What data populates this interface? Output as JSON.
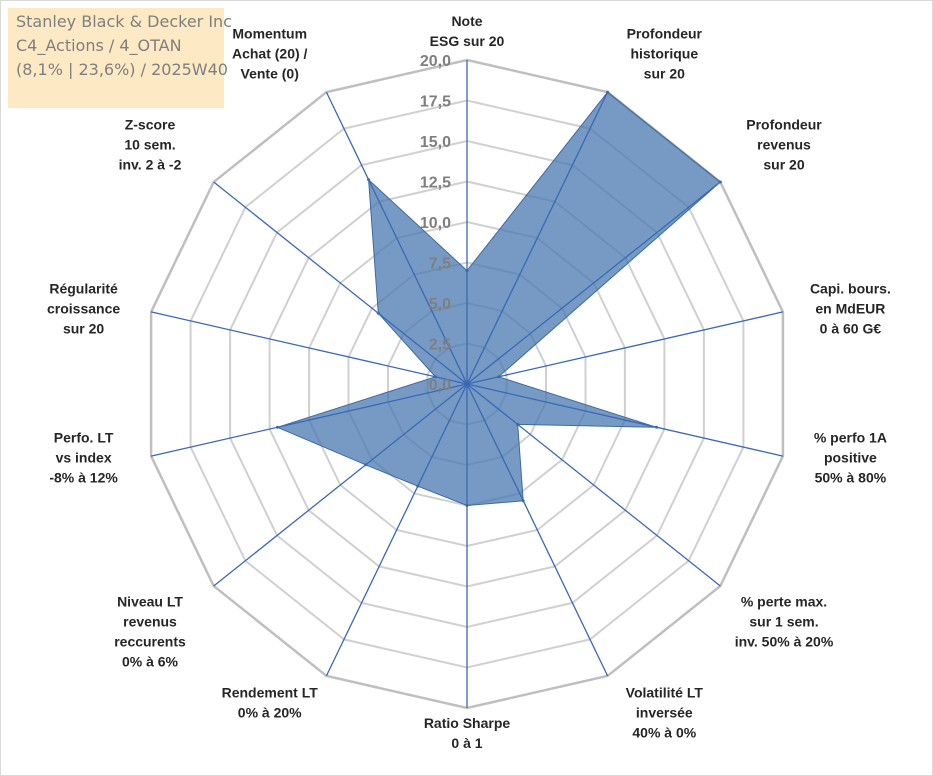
{
  "title": {
    "line1": "Stanley Black & Decker Inc",
    "line2": "C4_Actions / 4_OTAN",
    "line3": "(8,1% | 23,6%) / 2025W40"
  },
  "chart_data": {
    "type": "radar",
    "rmin": 0,
    "rmax": 20,
    "tick_step": 2.5,
    "tick_labels": [
      "0,0",
      "2,5",
      "5,0",
      "7,5",
      "10,0",
      "12,5",
      "15,0",
      "17,5",
      "20,0"
    ],
    "series_color": "#4a78b0",
    "axes": [
      {
        "label": [
          "Note",
          "ESG sur 20"
        ],
        "value": 7.0
      },
      {
        "label": [
          "Profondeur",
          "historique",
          "sur 20"
        ],
        "value": 20.0
      },
      {
        "label": [
          "Profondeur",
          "revenus",
          "sur 20"
        ],
        "value": 20.0
      },
      {
        "label": [
          "Capi. bours.",
          "en MdEUR",
          "0 à 60 G€"
        ],
        "value": 2.0
      },
      {
        "label": [
          "% perfo 1A",
          "positive",
          "50% à 80%"
        ],
        "value": 12.0
      },
      {
        "label": [
          "% perte max.",
          "sur 1 sem.",
          "inv. 50% à 20%"
        ],
        "value": 4.0
      },
      {
        "label": [
          "Volatilité LT",
          "inversée",
          "40% à 0%"
        ],
        "value": 8.0
      },
      {
        "label": [
          "Ratio Sharpe",
          "0 à 1"
        ],
        "value": 7.5
      },
      {
        "label": [
          "Rendement LT",
          "0% à 20%"
        ],
        "value": 7.0
      },
      {
        "label": [
          "Niveau LT",
          "revenus",
          "reccurents",
          "0% à 6%"
        ],
        "value": 8.0
      },
      {
        "label": [
          "Perfo. LT",
          "vs index",
          "-8% à 12%"
        ],
        "value": 12.0
      },
      {
        "label": [
          "Régularité",
          "croissance",
          "sur 20"
        ],
        "value": 2.0
      },
      {
        "label": [
          "Z-score",
          "10 sem.",
          "inv. 2 à -2"
        ],
        "value": 7.0
      },
      {
        "label": [
          "Momentum",
          "Achat (20) /",
          "Vente (0)"
        ],
        "value": 14.0
      }
    ]
  }
}
